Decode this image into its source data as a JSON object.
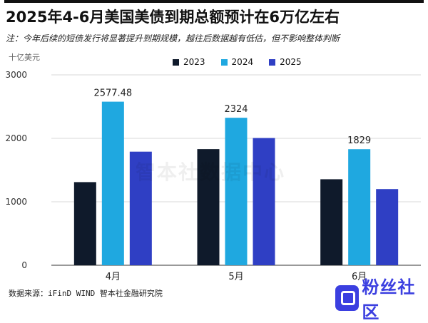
{
  "title": "2025年4-6月美国美债到期总额预计在6万亿左右",
  "subtitle": "注：今年后续的短债发行将显著提升到期规模，越往后数据越有低估，但不影响整体判断",
  "unit_label": "十亿美元",
  "watermark": "智本社数据中心",
  "source": "数据来源：iFinD WIND 智本社金融研究院",
  "logo_text": "粉丝社区",
  "colors": {
    "2023": "#0f1a2b",
    "2024": "#1fa8e0",
    "2025": "#2f3fc4"
  },
  "chart_data": {
    "type": "bar",
    "categories": [
      "4月",
      "5月",
      "6月"
    ],
    "series": [
      {
        "name": "2023",
        "values": [
          1310,
          1830,
          1355
        ]
      },
      {
        "name": "2024",
        "values": [
          2577.48,
          2324,
          1829
        ]
      },
      {
        "name": "2025",
        "values": [
          1790,
          2005,
          1200
        ]
      }
    ],
    "data_labels": [
      {
        "category": "4月",
        "series": "2024",
        "text": "2577.48"
      },
      {
        "category": "5月",
        "series": "2024",
        "text": "2324"
      },
      {
        "category": "6月",
        "series": "2024",
        "text": "1829"
      }
    ],
    "yticks": [
      0,
      1000,
      2000,
      3000
    ],
    "ylim": [
      0,
      3000
    ],
    "legend_position": "top-right",
    "grid": true
  }
}
